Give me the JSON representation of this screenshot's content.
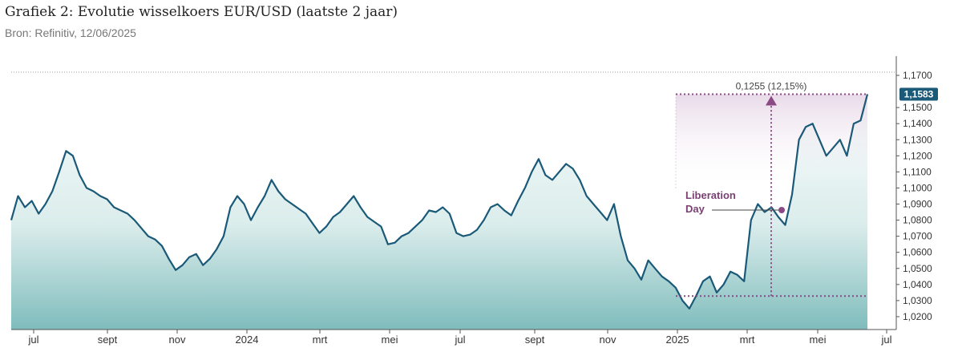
{
  "title": "Grafiek 2: Evolutie wisselkoers EUR/USD (laatste 2 jaar)",
  "subtitle": "Bron: Refinitiv, 12/06/2025",
  "colors": {
    "line": "#1a5a78",
    "area_top": "#e9f3f3",
    "area_bottom": "#7fbcbc",
    "annotation": "#8b4a85",
    "label_bg": "#1a5a78"
  },
  "chart_data": {
    "type": "area",
    "title": "Grafiek 2: Evolutie wisselkoers EUR/USD (laatste 2 jaar)",
    "ylim": [
      1.012,
      1.172
    ],
    "y_ticks": [
      "1,0200",
      "1,0300",
      "1,0400",
      "1,0500",
      "1,0600",
      "1,0700",
      "1,0800",
      "1,0900",
      "1,1000",
      "1,1100",
      "1,1200",
      "1,1300",
      "1,1400",
      "1,1500",
      "1,1700"
    ],
    "x_ticks": [
      "jul",
      "sept",
      "nov",
      "2024",
      "mrt",
      "mei",
      "jul",
      "sept",
      "nov",
      "2025",
      "mrt",
      "mei",
      "jul"
    ],
    "series": [
      {
        "values_start": "juni 2023",
        "points": [
          [
            "jun '23",
            1.08
          ],
          [
            "",
            1.095
          ],
          [
            "",
            1.088
          ],
          [
            "",
            1.092
          ],
          [
            "",
            1.084
          ],
          [
            "jul '23",
            1.09
          ],
          [
            "",
            1.098
          ],
          [
            "",
            1.11
          ],
          [
            "",
            1.123
          ],
          [
            "",
            1.12
          ],
          [
            "",
            1.108
          ],
          [
            "",
            1.1
          ],
          [
            "aug '23",
            1.098
          ],
          [
            "",
            1.095
          ],
          [
            "",
            1.093
          ],
          [
            "",
            1.088
          ],
          [
            "",
            1.086
          ],
          [
            "",
            1.084
          ],
          [
            "sept '23",
            1.08
          ],
          [
            "",
            1.075
          ],
          [
            "",
            1.07
          ],
          [
            "",
            1.068
          ],
          [
            "",
            1.064
          ],
          [
            "okt '23",
            1.056
          ],
          [
            "",
            1.049
          ],
          [
            "",
            1.052
          ],
          [
            "",
            1.057
          ],
          [
            "",
            1.059
          ],
          [
            "",
            1.052
          ],
          [
            "nov '23",
            1.056
          ],
          [
            "",
            1.062
          ],
          [
            "",
            1.07
          ],
          [
            "",
            1.088
          ],
          [
            "",
            1.095
          ],
          [
            "dec '23",
            1.09
          ],
          [
            "",
            1.08
          ],
          [
            "",
            1.088
          ],
          [
            "",
            1.095
          ],
          [
            "",
            1.105
          ],
          [
            "jan '24",
            1.098
          ],
          [
            "",
            1.093
          ],
          [
            "",
            1.09
          ],
          [
            "",
            1.087
          ],
          [
            "",
            1.084
          ],
          [
            "feb '24",
            1.078
          ],
          [
            "",
            1.072
          ],
          [
            "",
            1.076
          ],
          [
            "",
            1.082
          ],
          [
            "",
            1.085
          ],
          [
            "mrt '24",
            1.09
          ],
          [
            "",
            1.095
          ],
          [
            "",
            1.088
          ],
          [
            "",
            1.082
          ],
          [
            "",
            1.079
          ],
          [
            "apr '24",
            1.076
          ],
          [
            "",
            1.065
          ],
          [
            "",
            1.066
          ],
          [
            "",
            1.07
          ],
          [
            "",
            1.072
          ],
          [
            "mei '24",
            1.076
          ],
          [
            "",
            1.08
          ],
          [
            "",
            1.086
          ],
          [
            "",
            1.085
          ],
          [
            "",
            1.088
          ],
          [
            "jun '24",
            1.084
          ],
          [
            "",
            1.072
          ],
          [
            "",
            1.07
          ],
          [
            "",
            1.071
          ],
          [
            "",
            1.074
          ],
          [
            "jul '24",
            1.08
          ],
          [
            "",
            1.088
          ],
          [
            "",
            1.09
          ],
          [
            "",
            1.086
          ],
          [
            "",
            1.083
          ],
          [
            "aug '24",
            1.092
          ],
          [
            "",
            1.1
          ],
          [
            "",
            1.11
          ],
          [
            "",
            1.118
          ],
          [
            "",
            1.108
          ],
          [
            "sept '24",
            1.105
          ],
          [
            "",
            1.11
          ],
          [
            "",
            1.115
          ],
          [
            "",
            1.112
          ],
          [
            "okt '24",
            1.105
          ],
          [
            "",
            1.095
          ],
          [
            "",
            1.09
          ],
          [
            "",
            1.085
          ],
          [
            "",
            1.08
          ],
          [
            "nov '24",
            1.09
          ],
          [
            "",
            1.07
          ],
          [
            "",
            1.055
          ],
          [
            "",
            1.05
          ],
          [
            "",
            1.043
          ],
          [
            "dec '24",
            1.055
          ],
          [
            "",
            1.05
          ],
          [
            "",
            1.045
          ],
          [
            "",
            1.042
          ],
          [
            "",
            1.038
          ],
          [
            "jan '25",
            1.03
          ],
          [
            "",
            1.025
          ],
          [
            "",
            1.033
          ],
          [
            "",
            1.042
          ],
          [
            "",
            1.045
          ],
          [
            "feb '25",
            1.035
          ],
          [
            "",
            1.04
          ],
          [
            "",
            1.048
          ],
          [
            "",
            1.046
          ],
          [
            "",
            1.042
          ],
          [
            "mrt '25",
            1.08
          ],
          [
            "",
            1.09
          ],
          [
            "",
            1.085
          ],
          [
            "",
            1.088
          ],
          [
            "",
            1.082
          ],
          [
            "apr '25",
            1.077
          ],
          [
            "",
            1.096
          ],
          [
            "",
            1.13
          ],
          [
            "",
            1.138
          ],
          [
            "",
            1.14
          ],
          [
            "mei '25",
            1.13
          ],
          [
            "",
            1.12
          ],
          [
            "",
            1.125
          ],
          [
            "",
            1.13
          ],
          [
            "",
            1.12
          ],
          [
            "jun '25",
            1.14
          ],
          [
            "",
            1.142
          ],
          [
            "",
            1.1583
          ]
        ]
      }
    ],
    "last_value_label": "1,1583",
    "annotations": {
      "change_label": "0,1255 (12,15%)",
      "event_label_line1": "Liberation",
      "event_label_line2": "Day",
      "baseline_value": 1.0328,
      "top_value": 1.1583
    }
  }
}
